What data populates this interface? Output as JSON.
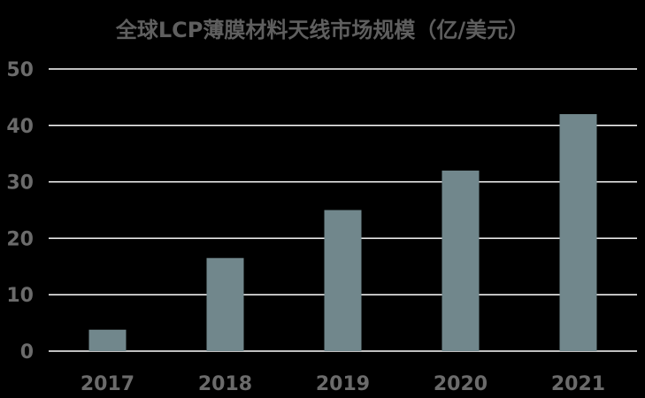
{
  "chart_data": {
    "type": "bar",
    "title": "全球LCP薄膜材料天线市场规模（亿/美元）",
    "categories": [
      "2017",
      "2018",
      "2019",
      "2020",
      "2021"
    ],
    "values": [
      3.8,
      16.5,
      25,
      32,
      42
    ],
    "ylim": [
      0,
      50
    ],
    "yticks": [
      0,
      10,
      20,
      30,
      40,
      50
    ],
    "grid": true,
    "legend": "none",
    "xlabel": "",
    "ylabel": "",
    "colors": {
      "bar": "#71878c",
      "grid": "#ffffff",
      "text": "#6b6b6b",
      "background": "#000000"
    }
  }
}
